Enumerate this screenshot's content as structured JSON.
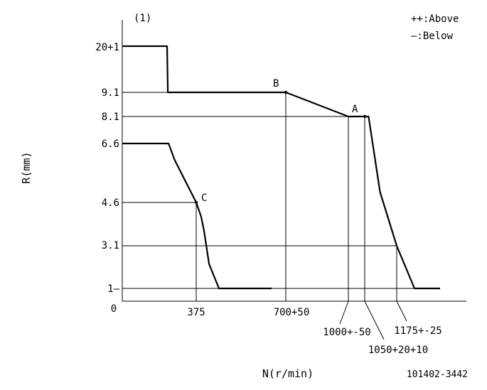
{
  "panel_label": "(1)",
  "legend": {
    "above": "++:Above",
    "below": "—:Below"
  },
  "ylabel": "R(mm)",
  "xlabel": "N(r/min)",
  "code": "101402-3442",
  "chart_data": {
    "type": "line",
    "title": "",
    "xlabel": "N(r/min)",
    "ylabel": "R(mm)",
    "origin_label": "0",
    "ytick_labels": [
      "20+1",
      "9.1",
      "8.1",
      "6.6",
      "4.6",
      "3.1",
      "1—"
    ],
    "xtick_labels": [
      "375",
      "700+50",
      "1000+-50",
      "1050+20+10",
      "1175+-25"
    ],
    "points": [
      {
        "name": "A",
        "x": 1050,
        "y": 8.1
      },
      {
        "name": "B",
        "x": 700,
        "y": 9.1
      },
      {
        "name": "C",
        "x": 375,
        "y": 4.6
      }
    ],
    "series": [
      {
        "values": [
          [
            0,
            20
          ],
          [
            180,
            20
          ],
          [
            185,
            9.1
          ],
          [
            700,
            9.1
          ],
          [
            1000,
            8.1
          ],
          [
            1065,
            8.1
          ],
          [
            1110,
            4.95
          ],
          [
            1175,
            3.1
          ],
          [
            1250,
            1.0
          ],
          [
            1370,
            1.0
          ]
        ]
      },
      {
        "values": [
          [
            0,
            6.6
          ],
          [
            190,
            6.6
          ],
          [
            230,
            6.05
          ],
          [
            375,
            4.6
          ],
          [
            400,
            4.1
          ],
          [
            415,
            3.6
          ],
          [
            440,
            2.2
          ],
          [
            490,
            1.0
          ],
          [
            610,
            1.0
          ]
        ]
      }
    ]
  }
}
